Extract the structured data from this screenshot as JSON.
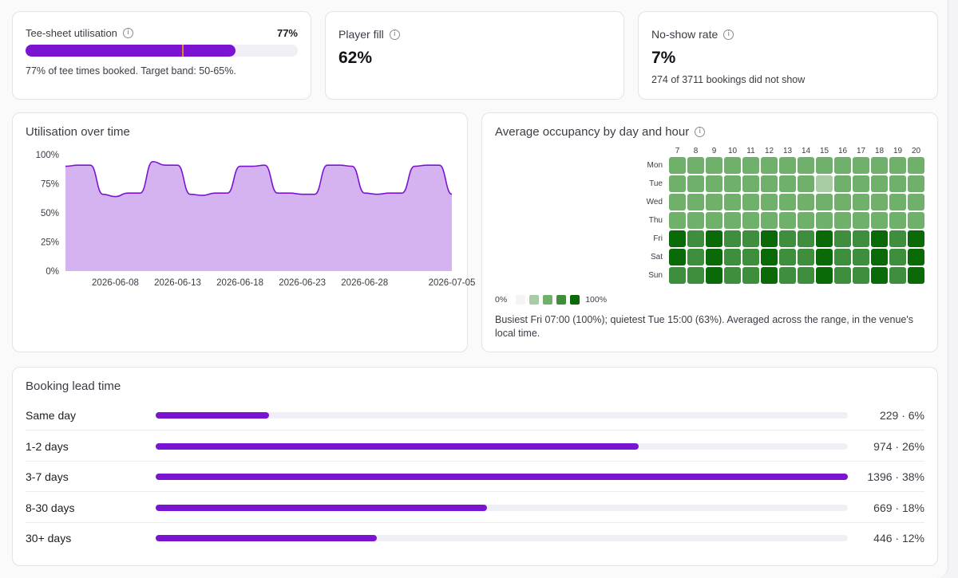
{
  "kpis": {
    "utilisation": {
      "title": "Tee-sheet utilisation",
      "value": "77%",
      "fill": 0.77,
      "target_marker": 0.575,
      "caption": "77% of tee times booked. Target band: 50-65%."
    },
    "player_fill": {
      "title": "Player fill",
      "value": "62%"
    },
    "no_show": {
      "title": "No-show rate",
      "value": "7%",
      "caption": "274 of 3711 bookings did not show"
    }
  },
  "colors": {
    "accent": "#7a14d2",
    "area_fill": "#d4b3f0",
    "area_line": "#7a14d2",
    "target_marker": "#e08a1c",
    "heat_scale": [
      "#f3f4f3",
      "#a8cca3",
      "#6fb06a",
      "#3f8e3d",
      "#0b6a08"
    ]
  },
  "utilisation_over_time": {
    "title": "Utilisation over time",
    "icon": "none"
  },
  "heatmap": {
    "title": "Average occupancy by day and hour",
    "legend_min": "0%",
    "legend_max": "100%",
    "caption_line1": "Busiest Fri 07:00 (100%); quietest Tue 15:00 (63%). Averaged across the range, in the venue's",
    "caption_line2": "local time."
  },
  "lead_time": {
    "title": "Booking lead time",
    "rows": [
      {
        "label": "Same day",
        "value": "229 · 6%",
        "share": 0.164
      },
      {
        "label": "1-2 days",
        "value": "974 · 26%",
        "share": 0.698
      },
      {
        "label": "3-7 days",
        "value": "1396 · 38%",
        "share": 1.0
      },
      {
        "label": "8-30 days",
        "value": "669 · 18%",
        "share": 0.479
      },
      {
        "label": "30+ days",
        "value": "446 · 12%",
        "share": 0.319
      }
    ]
  },
  "chart_data": [
    {
      "type": "area",
      "title": "Utilisation over time",
      "ylabel": "",
      "xlabel": "",
      "ylim": [
        0,
        100
      ],
      "yticks": [
        "100%",
        "75%",
        "50%",
        "25%",
        "0%"
      ],
      "ytick_values": [
        100,
        75,
        50,
        25,
        0
      ],
      "xticks": [
        "2026-06-08",
        "2026-06-13",
        "2026-06-18",
        "2026-06-23",
        "2026-06-28",
        "2026-07-05"
      ],
      "x": [
        "2026-06-04",
        "2026-06-05",
        "2026-06-06",
        "2026-06-07",
        "2026-06-08",
        "2026-06-09",
        "2026-06-10",
        "2026-06-11",
        "2026-06-12",
        "2026-06-13",
        "2026-06-14",
        "2026-06-15",
        "2026-06-16",
        "2026-06-17",
        "2026-06-18",
        "2026-06-19",
        "2026-06-20",
        "2026-06-21",
        "2026-06-22",
        "2026-06-23",
        "2026-06-24",
        "2026-06-25",
        "2026-06-26",
        "2026-06-27",
        "2026-06-28",
        "2026-06-29",
        "2026-06-30",
        "2026-07-01",
        "2026-07-02",
        "2026-07-03",
        "2026-07-04",
        "2026-07-05"
      ],
      "values": [
        90,
        91,
        91,
        66,
        64,
        67,
        67,
        94,
        91,
        91,
        66,
        65,
        67,
        67,
        90,
        90,
        91,
        67,
        67,
        66,
        66,
        91,
        91,
        90,
        67,
        66,
        67,
        67,
        90,
        91,
        91,
        66
      ],
      "grid": false
    },
    {
      "type": "heatmap",
      "title": "Average occupancy by day and hour",
      "x": [
        "7",
        "8",
        "9",
        "10",
        "11",
        "12",
        "13",
        "14",
        "15",
        "16",
        "17",
        "18",
        "19",
        "20"
      ],
      "y": [
        "Mon",
        "Tue",
        "Wed",
        "Thu",
        "Fri",
        "Sat",
        "Sun"
      ],
      "values": [
        [
          2,
          2,
          2,
          2,
          2,
          2,
          2,
          2,
          2,
          2,
          2,
          2,
          2,
          2
        ],
        [
          2,
          2,
          2,
          2,
          2,
          2,
          2,
          2,
          1,
          2,
          2,
          2,
          2,
          2
        ],
        [
          2,
          2,
          2,
          2,
          2,
          2,
          2,
          2,
          2,
          2,
          2,
          2,
          2,
          2
        ],
        [
          2,
          2,
          2,
          2,
          2,
          2,
          2,
          2,
          2,
          2,
          2,
          2,
          2,
          2
        ],
        [
          4,
          3,
          4,
          3,
          3,
          4,
          3,
          3,
          4,
          3,
          3,
          4,
          3,
          4
        ],
        [
          4,
          3,
          4,
          3,
          3,
          4,
          3,
          3,
          4,
          3,
          3,
          4,
          3,
          4
        ],
        [
          3,
          3,
          4,
          3,
          3,
          4,
          3,
          3,
          4,
          3,
          3,
          4,
          3,
          4
        ]
      ],
      "scale_min": "0%",
      "scale_max": "100%"
    },
    {
      "type": "bar",
      "title": "Booking lead time",
      "categories": [
        "Same day",
        "1-2 days",
        "3-7 days",
        "8-30 days",
        "30+ days"
      ],
      "values": [
        229,
        974,
        1396,
        669,
        446
      ],
      "percent": [
        6,
        26,
        38,
        18,
        12
      ]
    }
  ]
}
